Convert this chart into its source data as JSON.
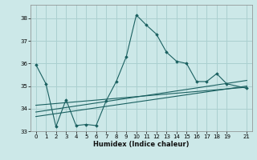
{
  "xlabel": "Humidex (Indice chaleur)",
  "ylabel": "",
  "bg_color": "#cce8e8",
  "grid_color": "#aad0d0",
  "line_color": "#1a6060",
  "xlim": [
    -0.5,
    21.5
  ],
  "ylim": [
    33.0,
    38.6
  ],
  "yticks": [
    33,
    34,
    35,
    36,
    37,
    38
  ],
  "xticks": [
    0,
    1,
    2,
    3,
    4,
    5,
    6,
    7,
    8,
    9,
    10,
    11,
    12,
    13,
    14,
    15,
    16,
    17,
    18,
    19,
    21
  ],
  "line1_x": [
    0,
    1,
    2,
    3,
    4,
    5,
    6,
    7,
    8,
    9,
    10,
    11,
    12,
    13,
    14,
    15,
    16,
    17,
    18,
    19,
    21
  ],
  "line1_y": [
    35.95,
    35.1,
    33.2,
    34.4,
    33.25,
    33.3,
    33.25,
    34.35,
    35.2,
    36.3,
    38.15,
    37.7,
    37.3,
    36.5,
    36.1,
    36.0,
    35.2,
    35.2,
    35.55,
    35.1,
    34.9
  ],
  "line2_x": [
    0,
    21
  ],
  "line2_y": [
    33.65,
    35.0
  ],
  "line3_x": [
    0,
    21
  ],
  "line3_y": [
    33.85,
    35.25
  ],
  "line4_x": [
    0,
    21
  ],
  "line4_y": [
    34.15,
    34.95
  ]
}
